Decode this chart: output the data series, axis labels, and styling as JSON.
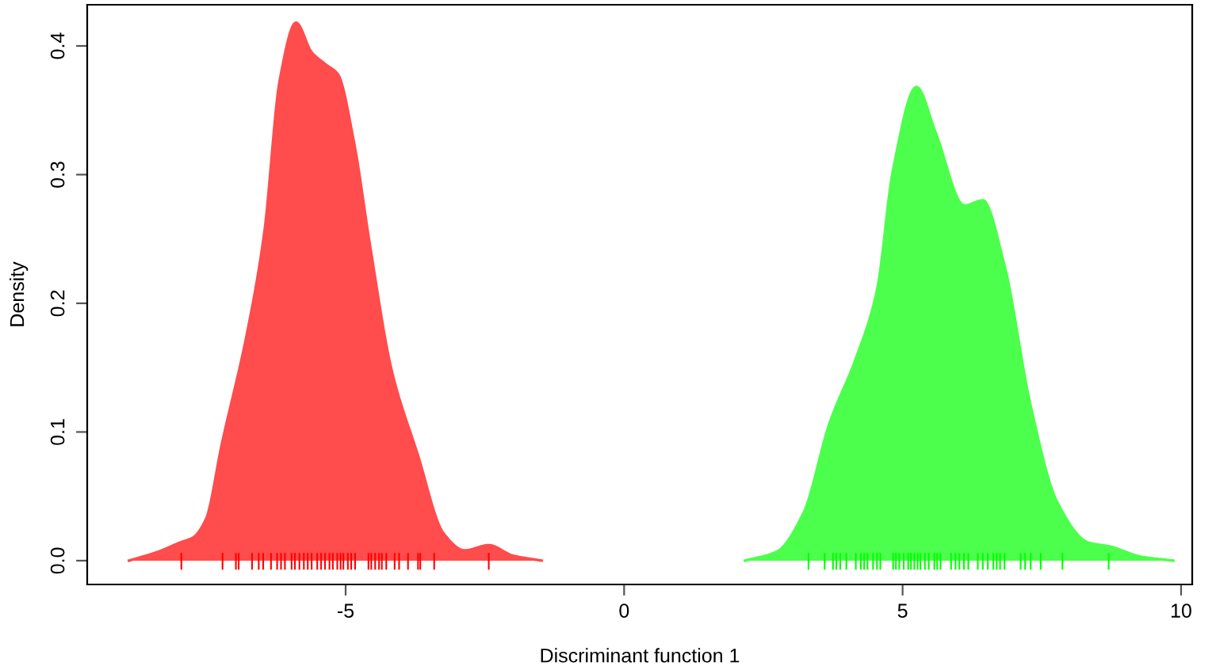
{
  "chart_data": {
    "type": "area",
    "xlabel": "Discriminant function 1",
    "ylabel": "Density",
    "xlim": [
      -9.64,
      10.2
    ],
    "ylim": [
      -0.0185,
      0.432
    ],
    "xticks": [
      -5,
      0,
      5,
      10
    ],
    "yticks": [
      {
        "value": 0,
        "label": "0.0"
      },
      0.1,
      0.2,
      0.3,
      0.4
    ],
    "grid": false,
    "series": [
      {
        "color": "#ff4c4c",
        "x": [
          -8.89,
          -8.36,
          -7.98,
          -7.74,
          -7.51,
          -7.22,
          -6.75,
          -6.46,
          -6.18,
          -5.89,
          -5.61,
          -5.37,
          -5.14,
          -4.85,
          -4.57,
          -4.18,
          -3.71,
          -3.24,
          -2.86,
          -2.43,
          -2.0,
          -1.48
        ],
        "values": [
          0,
          0.007,
          0.014,
          0.018,
          0.032,
          0.091,
          0.181,
          0.255,
          0.374,
          0.418,
          0.395,
          0.386,
          0.378,
          0.325,
          0.247,
          0.149,
          0.083,
          0.021,
          0.008,
          0.012,
          0.004,
          0
        ]
      },
      {
        "color": "#4cff4c",
        "x": [
          2.17,
          2.74,
          3.22,
          3.69,
          4.16,
          4.54,
          4.83,
          5.25,
          5.59,
          6.11,
          6.44,
          6.82,
          7.3,
          7.77,
          8.34,
          8.72,
          9.29,
          9.86
        ],
        "values": [
          0,
          0.007,
          0.037,
          0.107,
          0.157,
          0.21,
          0.304,
          0.368,
          0.333,
          0.276,
          0.28,
          0.231,
          0.12,
          0.046,
          0.014,
          0.011,
          0.003,
          0
        ]
      },
      {
        "type": "bar",
        "color": "#ff0000",
        "x": [
          -7.95,
          -7.21,
          -6.97,
          -6.92,
          -6.68,
          -6.56,
          -6.48,
          -6.34,
          -6.23,
          -6.16,
          -6.09,
          -5.97,
          -5.91,
          -5.83,
          -5.75,
          -5.68,
          -5.61,
          -5.51,
          -5.44,
          -5.37,
          -5.29,
          -5.23,
          -5.15,
          -5.09,
          -5.04,
          -4.96,
          -4.9,
          -4.83,
          -4.59,
          -4.54,
          -4.47,
          -4.4,
          -4.35,
          -4.27,
          -4.12,
          -4.04,
          -3.88,
          -3.7,
          -3.66,
          -3.41,
          -2.43
        ],
        "base": [
          -0.007,
          -0.007,
          -0.007,
          -0.007,
          -0.007,
          -0.007,
          -0.007,
          -0.007,
          -0.007,
          -0.007,
          -0.007,
          -0.007,
          -0.007,
          -0.007,
          -0.007,
          -0.007,
          -0.007,
          -0.007,
          -0.007,
          -0.007,
          -0.007,
          -0.007,
          -0.007,
          -0.007,
          -0.007,
          -0.007,
          -0.007,
          -0.007,
          -0.007,
          -0.007,
          -0.007,
          -0.007,
          -0.007,
          -0.007,
          -0.007,
          -0.007,
          -0.007,
          -0.007,
          -0.007,
          -0.007,
          -0.007
        ],
        "values": [
          0.013,
          0.013,
          0.013,
          0.013,
          0.013,
          0.013,
          0.013,
          0.013,
          0.013,
          0.013,
          0.013,
          0.013,
          0.013,
          0.013,
          0.013,
          0.013,
          0.013,
          0.013,
          0.013,
          0.013,
          0.013,
          0.013,
          0.013,
          0.013,
          0.013,
          0.013,
          0.013,
          0.013,
          0.013,
          0.013,
          0.013,
          0.013,
          0.013,
          0.013,
          0.013,
          0.013,
          0.013,
          0.013,
          0.013,
          0.013,
          0.013
        ]
      },
      {
        "type": "bar",
        "color": "#00ff00",
        "x": [
          3.31,
          3.6,
          3.75,
          3.81,
          3.88,
          3.99,
          4.16,
          4.25,
          4.31,
          4.37,
          4.47,
          4.54,
          4.6,
          4.83,
          4.88,
          4.94,
          5.02,
          5.1,
          5.15,
          5.21,
          5.27,
          5.32,
          5.4,
          5.47,
          5.57,
          5.62,
          5.68,
          5.87,
          5.95,
          6.02,
          6.1,
          6.18,
          6.35,
          6.44,
          6.53,
          6.63,
          6.69,
          6.75,
          6.83,
          7.12,
          7.2,
          7.3,
          7.48,
          7.87,
          8.7
        ],
        "base": [
          -0.007,
          -0.007,
          -0.007,
          -0.007,
          -0.007,
          -0.007,
          -0.007,
          -0.007,
          -0.007,
          -0.007,
          -0.007,
          -0.007,
          -0.007,
          -0.007,
          -0.007,
          -0.007,
          -0.007,
          -0.007,
          -0.007,
          -0.007,
          -0.007,
          -0.007,
          -0.007,
          -0.007,
          -0.007,
          -0.007,
          -0.007,
          -0.007,
          -0.007,
          -0.007,
          -0.007,
          -0.007,
          -0.007,
          -0.007,
          -0.007,
          -0.007,
          -0.007,
          -0.007,
          -0.007,
          -0.007,
          -0.007,
          -0.007,
          -0.007,
          -0.007,
          -0.007
        ],
        "values": [
          0.013,
          0.013,
          0.013,
          0.013,
          0.013,
          0.013,
          0.013,
          0.013,
          0.013,
          0.013,
          0.013,
          0.013,
          0.013,
          0.013,
          0.013,
          0.013,
          0.013,
          0.013,
          0.013,
          0.013,
          0.013,
          0.013,
          0.013,
          0.013,
          0.013,
          0.013,
          0.013,
          0.013,
          0.013,
          0.013,
          0.013,
          0.013,
          0.013,
          0.013,
          0.013,
          0.013,
          0.013,
          0.013,
          0.013,
          0.013,
          0.013,
          0.013,
          0.013,
          0.013,
          0.013
        ]
      }
    ]
  }
}
